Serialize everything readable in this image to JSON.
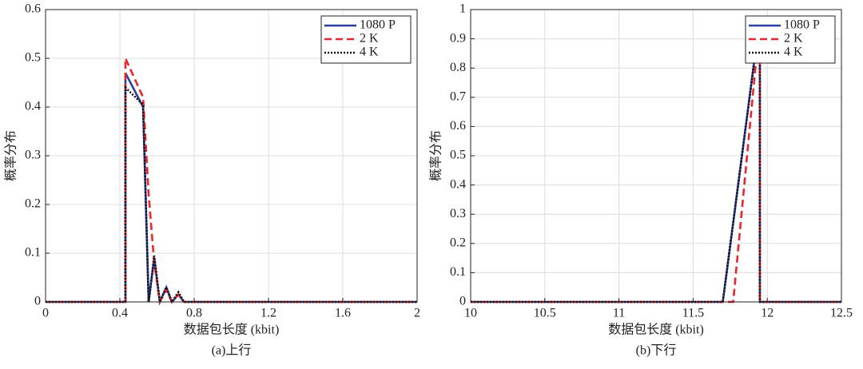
{
  "chart_data": [
    {
      "type": "line",
      "title": "(a)上行",
      "x_label": "数据包长度 (kbit)",
      "y_label": "概率分布",
      "x": [
        0,
        0.43,
        0.43,
        0.525,
        0.555,
        0.585,
        0.615,
        0.65,
        0.68,
        0.715,
        0.745,
        2
      ],
      "series": [
        {
          "name": "1080 P",
          "color": "#2b3f9e",
          "line_style": "solid",
          "values": [
            0,
            0,
            0.47,
            0.4,
            0,
            0.09,
            0,
            0.03,
            0,
            0.015,
            0,
            0
          ]
        },
        {
          "name": "2 K",
          "color": "#e8262d",
          "line_style": "dashed",
          "values": [
            0,
            0,
            0.5,
            0.42,
            0.22,
            0.08,
            0,
            0.025,
            0,
            0.015,
            0,
            0
          ]
        },
        {
          "name": "4 K",
          "color": "#111111",
          "line_style": "dotted",
          "values": [
            0,
            0,
            0.44,
            0.405,
            0,
            0.095,
            0,
            0.03,
            0,
            0.02,
            0,
            0
          ]
        }
      ],
      "xlim": [
        0,
        2
      ],
      "xticks": [
        0,
        0.4,
        0.8,
        1.2,
        1.6,
        2
      ],
      "ylim": [
        0,
        0.6
      ],
      "yticks": [
        0,
        0.1,
        0.2,
        0.3,
        0.4,
        0.5,
        0.6
      ],
      "grid": true,
      "legend": "upper right"
    },
    {
      "type": "line",
      "title": "(b)下行",
      "x_label": "数据包长度 (kbit)",
      "y_label": "概率分布",
      "x": [
        10,
        11.7,
        11.77,
        11.95,
        11.95,
        12.5
      ],
      "series": [
        {
          "name": "1080 P",
          "color": "#2b3f9e",
          "line_style": "solid",
          "values": [
            0,
            0,
            0.27,
            0.97,
            0,
            0
          ]
        },
        {
          "name": "2 K",
          "color": "#e8262d",
          "line_style": "dashed",
          "values": [
            0,
            0,
            0,
            0.96,
            0,
            0
          ]
        },
        {
          "name": "4 K",
          "color": "#111111",
          "line_style": "dotted",
          "values": [
            0,
            0,
            0.27,
            0.97,
            0,
            0
          ]
        }
      ],
      "xlim": [
        10,
        12.5
      ],
      "xticks": [
        10,
        10.5,
        11,
        11.5,
        12,
        12.5
      ],
      "ylim": [
        0,
        1
      ],
      "yticks": [
        0,
        0.1,
        0.2,
        0.3,
        0.4,
        0.5,
        0.6,
        0.7,
        0.8,
        0.9,
        1
      ],
      "grid": true,
      "legend": "upper right"
    }
  ]
}
